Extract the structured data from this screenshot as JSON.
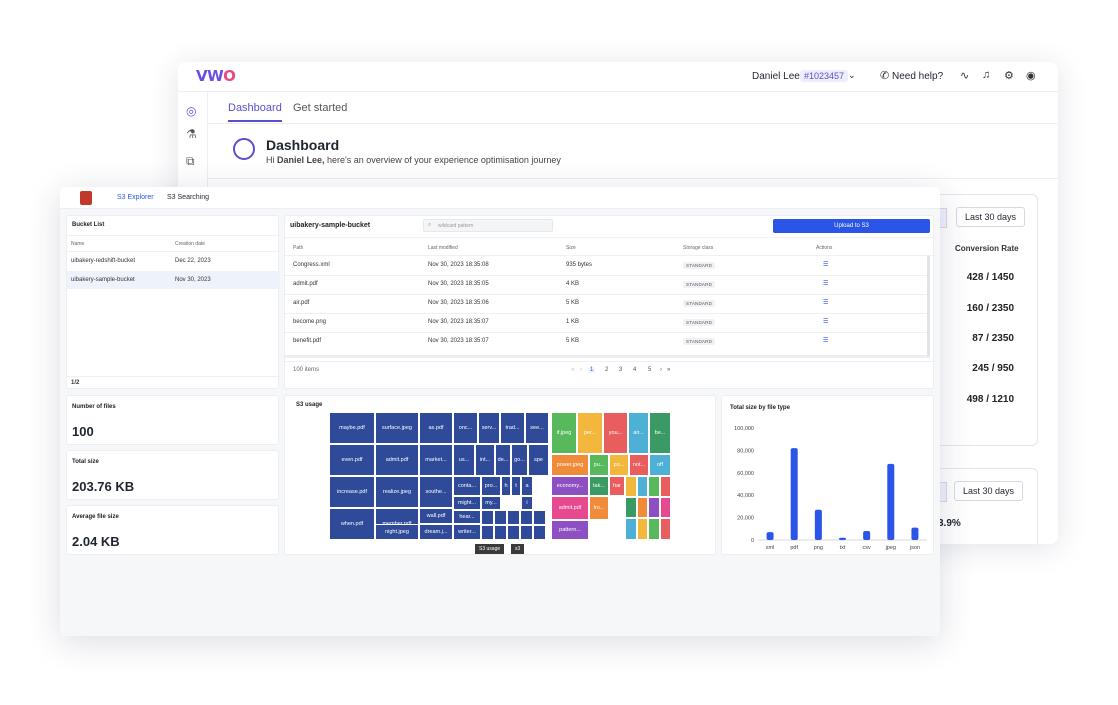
{
  "vwo": {
    "logo_part1": "VW",
    "logo_part2": "O",
    "user_name": "Daniel Lee",
    "account_id": "#1023457",
    "help_label": "Need help?",
    "tabs": [
      {
        "label": "Dashboard"
      },
      {
        "label": "Get started"
      }
    ],
    "title": "Dashboard",
    "subtitle_prefix": "Hi ",
    "subtitle_name": "Daniel Lee,",
    "subtitle_rest": " here's an overview of your experience optimisation journey",
    "range_left_label": "s",
    "range_label": "Last 30 days",
    "conversion_header": "Conversion Rate",
    "conversion_values": [
      "428 / 1450",
      "160 / 2350",
      "87 / 2350",
      "245 / 950",
      "498 / 1210"
    ],
    "range2_left_label": "s",
    "range2_label": "Last 30 days",
    "percent_partial": "3.9%"
  },
  "s3": {
    "nav": [
      {
        "label": "S3 Explorer"
      },
      {
        "label": "S3 Searching"
      }
    ],
    "bucket_list": {
      "title": "Bucket List",
      "col_name": "Name",
      "col_date": "Creation date",
      "rows": [
        {
          "name": "uibakery-redshift-bucket",
          "date": "Dec 22, 2023"
        },
        {
          "name": "uibakery-sample-bucket",
          "date": "Nov 30, 2023"
        }
      ],
      "page": "1/2"
    },
    "bucket": {
      "name": "uibakery-sample-bucket",
      "search_placeholder": "wildcard pattern",
      "upload_label": "Upload to S3",
      "headers": {
        "path": "Path",
        "modified": "Last modified",
        "size": "Size",
        "storage": "Storage class",
        "actions": "Actions"
      },
      "rows": [
        {
          "path": "Congress.xml",
          "modified": "Nov 30, 2023 18:35:08",
          "size": "935 bytes",
          "storage": "STANDARD"
        },
        {
          "path": "admit.pdf",
          "modified": "Nov 30, 2023 18:35:05",
          "size": "4 KB",
          "storage": "STANDARD"
        },
        {
          "path": "air.pdf",
          "modified": "Nov 30, 2023 18:35:06",
          "size": "5 KB",
          "storage": "STANDARD"
        },
        {
          "path": "become.png",
          "modified": "Nov 30, 2023 18:35:07",
          "size": "1 KB",
          "storage": "STANDARD"
        },
        {
          "path": "benefit.pdf",
          "modified": "Nov 30, 2023 18:35:07",
          "size": "5 KB",
          "storage": "STANDARD"
        }
      ],
      "items_count": "100 items",
      "pages": [
        "1",
        "2",
        "3",
        "4",
        "5"
      ]
    },
    "metrics": [
      {
        "label": "Number of files",
        "value": "100"
      },
      {
        "label": "Total size",
        "value": "203.76 KB"
      },
      {
        "label": "Average file size",
        "value": "2.04 KB"
      }
    ],
    "treemap": {
      "title": "S3 usage",
      "blue_tiles": [
        "maybe.pdf",
        "surface.jpeg",
        "as.pdf",
        "onc...",
        "serv...",
        "trad...",
        "see...",
        "even.pdf",
        "admit.pdf",
        "market...",
        "us...",
        "int...",
        "de...",
        "go...",
        "spe",
        "increase.pdf",
        "realize.jpeg",
        "southe...",
        "conta...",
        "pro...",
        "h",
        "t",
        "a",
        "when.pdf",
        "member.pdf",
        "wall.pdf",
        "might...",
        "my...",
        "i",
        "night.jpeg",
        "dream.j...",
        "hear...",
        "writer..."
      ],
      "color_tiles": [
        "if.jpeg",
        "per...",
        "you...",
        "air...",
        "be...",
        "power.jpeg",
        "pu...",
        "po...",
        "not...",
        "off",
        "economy...",
        "tak...",
        "har",
        "admit.pdf",
        "fro...",
        "pattern..."
      ],
      "breadcrumb": [
        "S3 usage",
        "s3"
      ]
    },
    "chart_data": {
      "type": "bar",
      "title": "Total size by file type",
      "categories": [
        "xml",
        "pdf",
        "png",
        "txt",
        "csv",
        "jpeg",
        "json"
      ],
      "values": [
        7000,
        82000,
        27000,
        2000,
        8000,
        68000,
        11000
      ],
      "ylim": [
        0,
        100000
      ],
      "yticks": [
        "0",
        "20,000",
        "40,000",
        "60,000",
        "80,000",
        "100,000"
      ],
      "bar_color": "#2b55e6"
    }
  }
}
